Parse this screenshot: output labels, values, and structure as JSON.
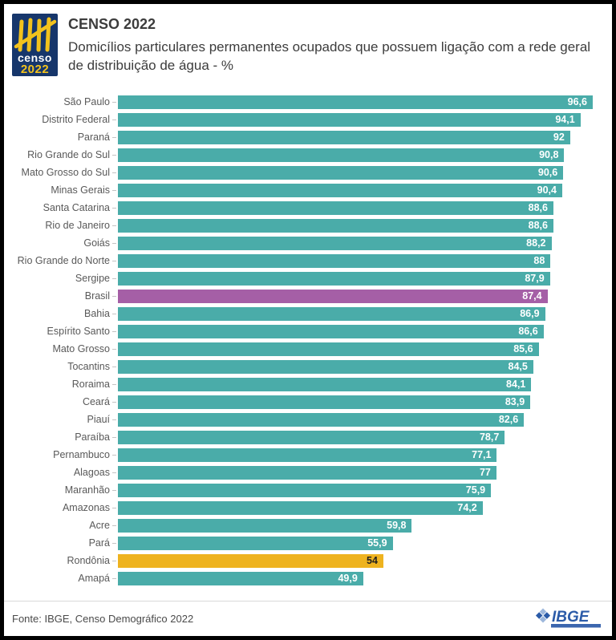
{
  "header": {
    "logo": {
      "word": "censo",
      "year": "2022"
    },
    "title": "CENSO 2022",
    "subtitle": "Domicílios particulares permanentes ocupados que possuem ligação com a rede geral de distribuição de água - %"
  },
  "chart_data": {
    "type": "bar",
    "orientation": "horizontal",
    "title": "Domicílios particulares permanentes ocupados que possuem ligação com a rede geral de distribuição de água - %",
    "xlabel": "",
    "ylabel": "",
    "xlim": [
      0,
      100
    ],
    "grid": false,
    "value_labels": "inside-end",
    "categories": [
      "São Paulo",
      "Distrito Federal",
      "Paraná",
      "Rio Grande do Sul",
      "Mato Grosso do Sul",
      "Minas Gerais",
      "Santa Catarina",
      "Rio de Janeiro",
      "Goiás",
      "Rio Grande do Norte",
      "Sergipe",
      "Brasil",
      "Bahia",
      "Espírito Santo",
      "Mato Grosso",
      "Tocantins",
      "Roraima",
      "Ceará",
      "Piauí",
      "Paraíba",
      "Pernambuco",
      "Alagoas",
      "Maranhão",
      "Amazonas",
      "Acre",
      "Pará",
      "Rondônia",
      "Amapá"
    ],
    "values": [
      96.6,
      94.1,
      92,
      90.8,
      90.6,
      90.4,
      88.6,
      88.6,
      88.2,
      88,
      87.9,
      87.4,
      86.9,
      86.6,
      85.6,
      84.5,
      84.1,
      83.9,
      82.6,
      78.7,
      77.1,
      77,
      75.9,
      74.2,
      59.8,
      55.9,
      54,
      49.9
    ],
    "display_values": [
      "96,6",
      "94,1",
      "92",
      "90,8",
      "90,6",
      "90,4",
      "88,6",
      "88,6",
      "88,2",
      "88",
      "87,9",
      "87,4",
      "86,9",
      "86,6",
      "85,6",
      "84,5",
      "84,1",
      "83,9",
      "82,6",
      "78,7",
      "77,1",
      "77",
      "75,9",
      "74,2",
      "59,8",
      "55,9",
      "54",
      "49,9"
    ],
    "scale_max": 96.6,
    "default_color": "#4AACA9",
    "value_text_color": "#FFFFFF",
    "overrides": {
      "11": {
        "color": "#A55FA6"
      },
      "26": {
        "color": "#EEB31F",
        "value_text_color": "#1F1F1F"
      }
    }
  },
  "colors": {
    "teal": "#4AACA9",
    "brasil_highlight": "#A55FA6",
    "rondonia_highlight": "#EEB31F",
    "logo_navy": "#16366B",
    "logo_yellow": "#F2C21D",
    "ibge_blue": "#2B5BA8",
    "ibge_light_blue": "#9DB7DC"
  },
  "footer": {
    "source": "Fonte: IBGE, Censo Demográfico 2022",
    "ibge_logo_text": "IBGE"
  }
}
